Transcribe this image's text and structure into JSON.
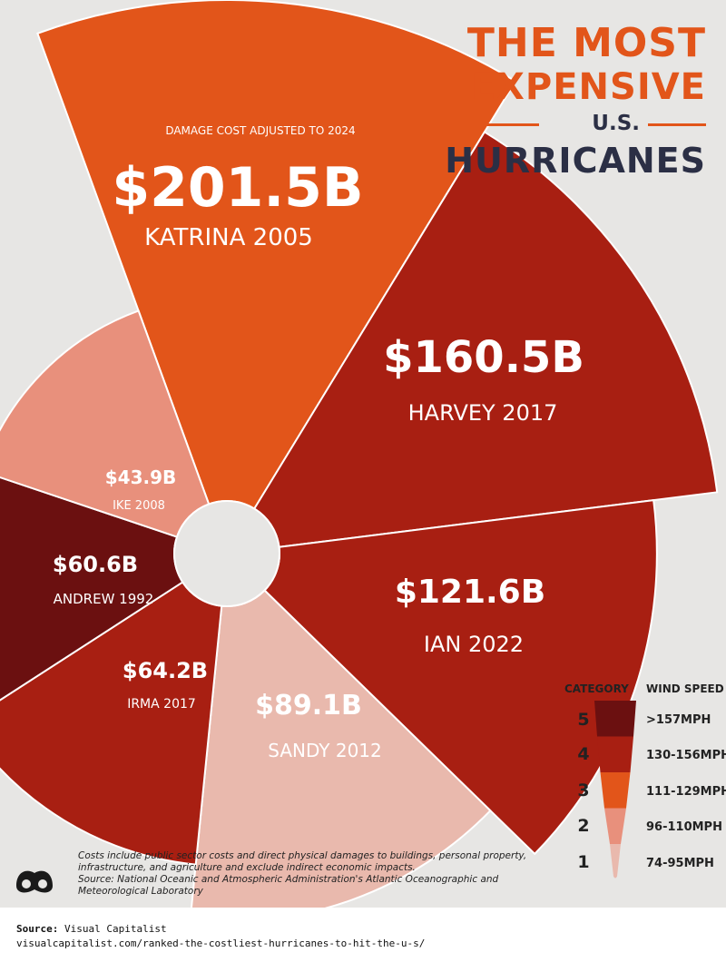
{
  "title": {
    "line1": "THE MOST",
    "line2": "EXPENSIVE",
    "line3": "U.S.",
    "line4": "HURRICANES"
  },
  "chart_data": {
    "type": "polar-bar",
    "annotation": "DAMAGE COST ADJUSTED TO 2024",
    "series": [
      {
        "name": "KATRINA 2005",
        "value_label": "$201.5B",
        "value": 201.5,
        "category": 3
      },
      {
        "name": "HARVEY 2017",
        "value_label": "$160.5B",
        "value": 160.5,
        "category": 4
      },
      {
        "name": "IAN 2022",
        "value_label": "$121.6B",
        "value": 121.6,
        "category": 4
      },
      {
        "name": "SANDY 2012",
        "value_label": "$89.1B",
        "value": 89.1,
        "category": 1
      },
      {
        "name": "IRMA 2017",
        "value_label": "$64.2B",
        "value": 64.2,
        "category": 4
      },
      {
        "name": "ANDREW 1992",
        "value_label": "$60.6B",
        "value": 60.6,
        "category": 5
      },
      {
        "name": "IKE 2008",
        "value_label": "$43.9B",
        "value": 43.9,
        "category": 2
      }
    ],
    "legend": {
      "category_header": "CATEGORY",
      "wind_header": "WIND SPEED",
      "items": [
        {
          "category": "5",
          "wind": ">157MPH",
          "color": "#6b1010"
        },
        {
          "category": "4",
          "wind": "130-156MPH",
          "color": "#a81f12"
        },
        {
          "category": "3",
          "wind": "111-129MPH",
          "color": "#e2551a"
        },
        {
          "category": "2",
          "wind": "96-110MPH",
          "color": "#e8907c"
        },
        {
          "category": "1",
          "wind": "74-95MPH",
          "color": "#e9b9ad"
        }
      ]
    }
  },
  "colors": {
    "cat5": "#6b1010",
    "cat4": "#a81f12",
    "cat3": "#e2551a",
    "cat2": "#e8907c",
    "cat1": "#e9b9ad"
  },
  "footnote": {
    "text": "Costs include public sector costs and direct physical damages to buildings, personal property, infrastructure, and agriculture and exclude indirect economic impacts.",
    "source": "Source: National Oceanic and Atmospheric Administration's Atlantic Oceanographic and Meteorological Laboratory"
  },
  "source_bar": {
    "label": "Source:",
    "name": "Visual Capitalist",
    "url": "visualcapitalist.com/ranked-the-costliest-hurricanes-to-hit-the-u-s/"
  }
}
